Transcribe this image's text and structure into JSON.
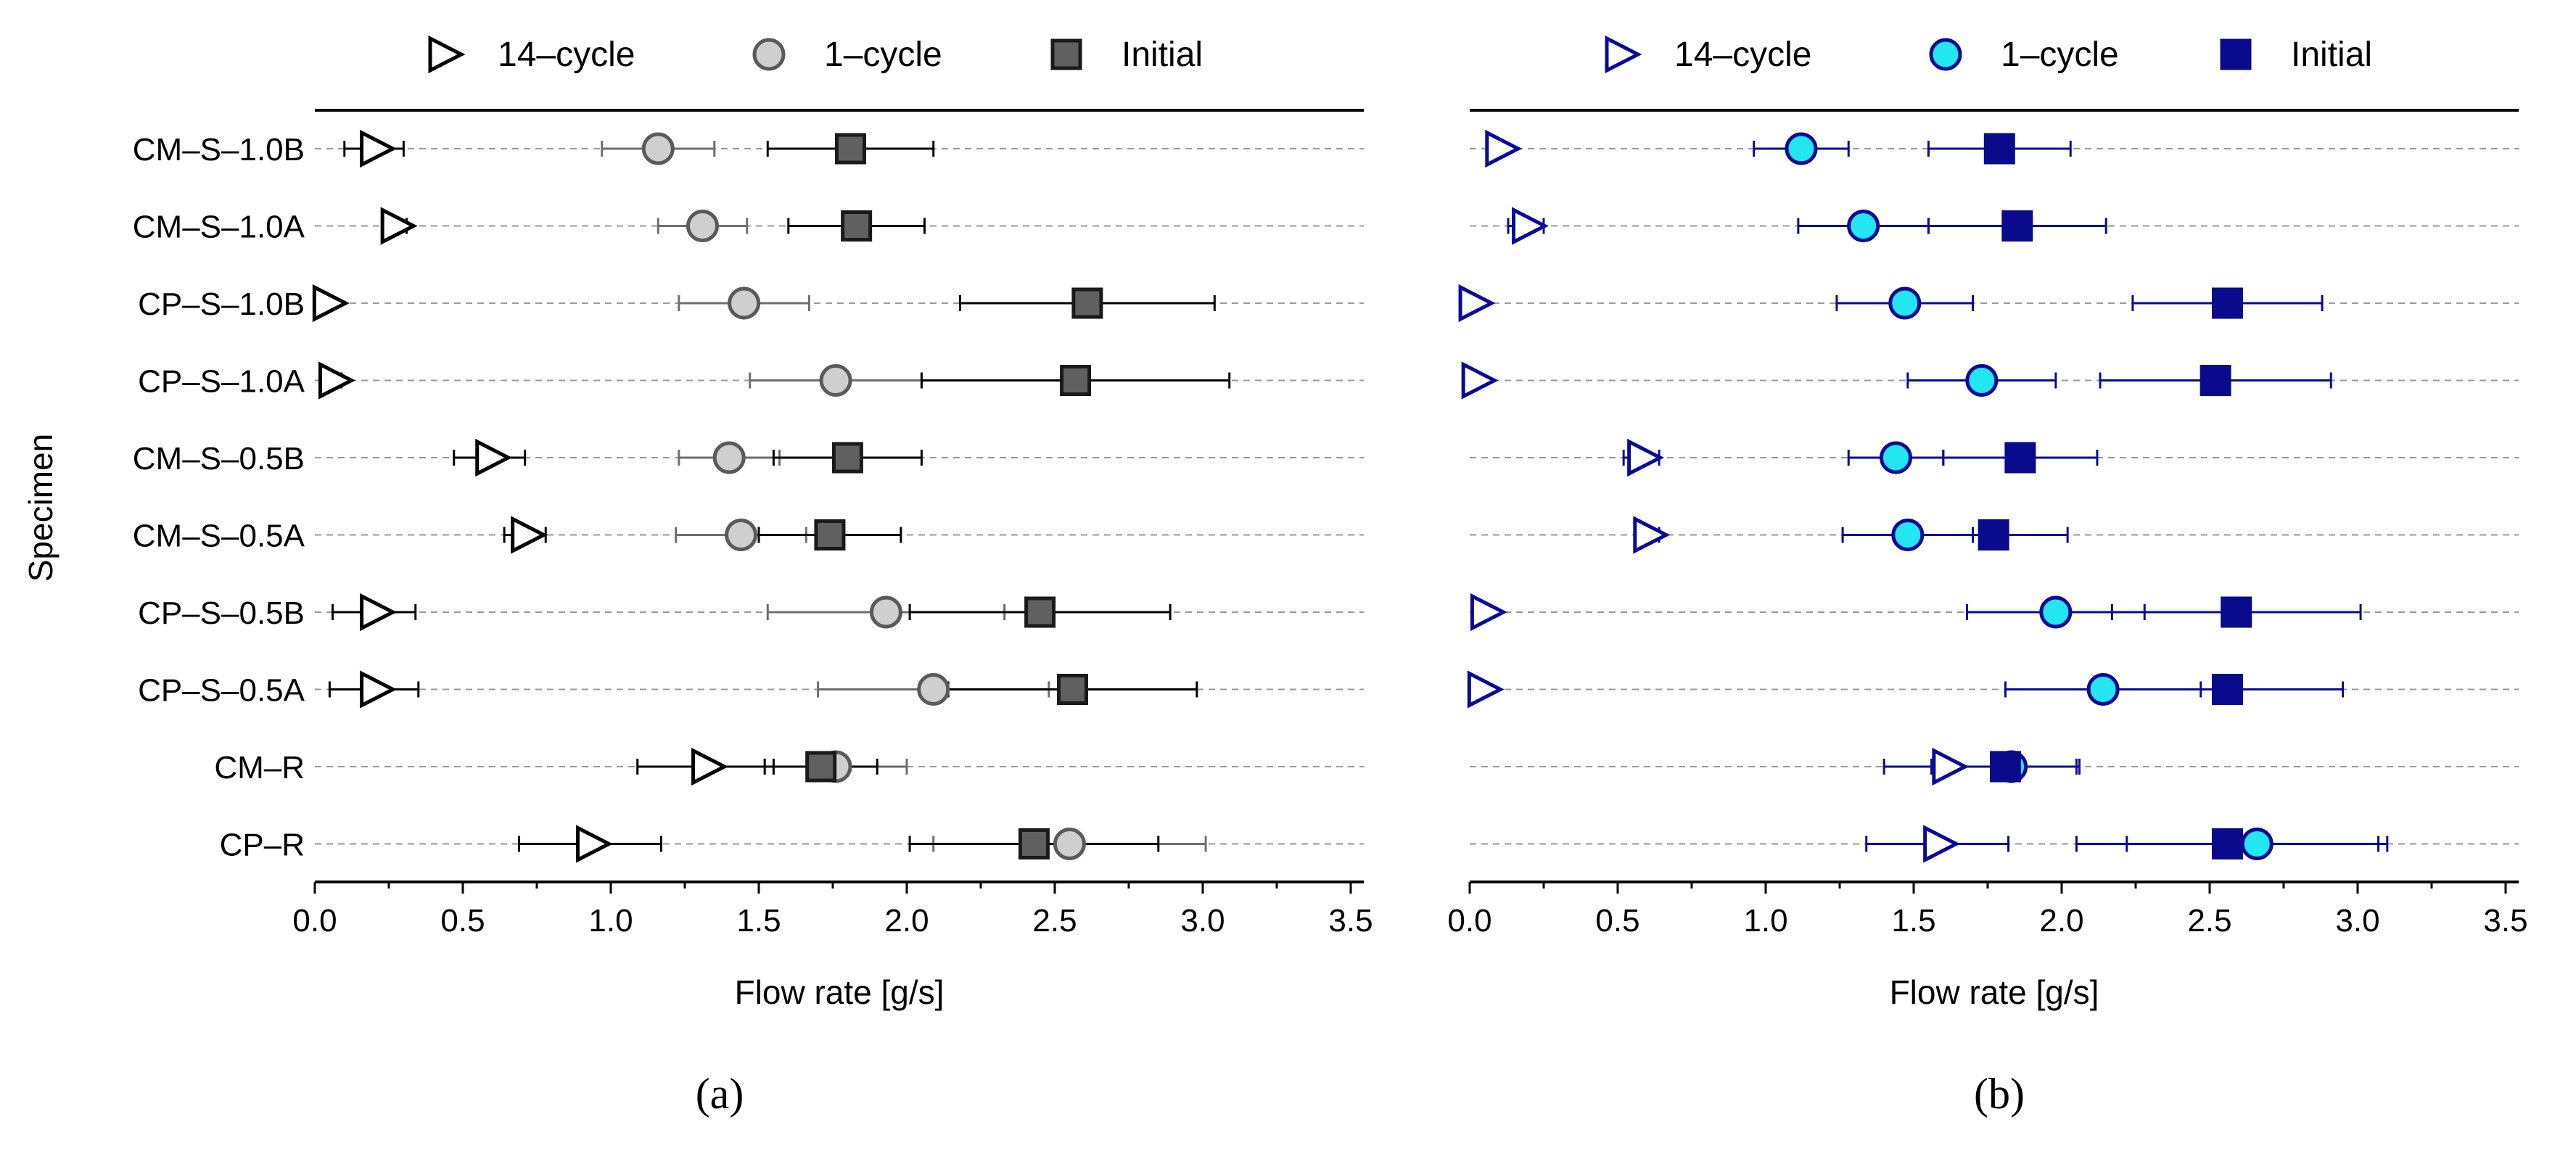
{
  "chart_data": [
    {
      "panel": "(a)",
      "type": "scatter",
      "xlabel": "Flow rate [g/s]",
      "ylabel": "Specimen",
      "xlim": [
        -0.05,
        3.5
      ],
      "xticks": [
        "0.0",
        "0.5",
        "1.0",
        "1.5",
        "2.0",
        "2.5",
        "3.0",
        "3.5"
      ],
      "categories": [
        "CM–S–1.0B",
        "CM–S–1.0A",
        "CP–S–1.0B",
        "CP–S–1.0A",
        "CM–S–0.5B",
        "CM–S–0.5A",
        "CP–S–0.5B",
        "CP–S–0.5A",
        "CM–R",
        "CP–R"
      ],
      "grid": "horizontal dashed",
      "legend_position": "top",
      "series": [
        {
          "name": "14–cycle",
          "marker": "triangle-right",
          "fill": "#ffffff",
          "stroke": "#000000",
          "err_color": "#000000",
          "values": [
            0.2,
            0.27,
            0.04,
            0.06,
            0.59,
            0.71,
            0.2,
            0.2,
            1.32,
            0.93
          ],
          "err": [
            0.1,
            0.04,
            0.0,
            0.03,
            0.12,
            0.07,
            0.14,
            0.15,
            0.23,
            0.24
          ]
        },
        {
          "name": "1–cycle",
          "marker": "circle",
          "fill": "#cfcfcf",
          "stroke": "#5a5a5a",
          "err_color": "#6e6e6e",
          "values": [
            1.16,
            1.31,
            1.45,
            1.76,
            1.4,
            1.44,
            1.93,
            2.09,
            1.76,
            2.55
          ],
          "err": [
            0.19,
            0.15,
            0.22,
            0.29,
            0.17,
            0.22,
            0.4,
            0.39,
            0.24,
            0.46
          ]
        },
        {
          "name": "Initial",
          "marker": "square",
          "fill": "#606060",
          "stroke": "#1a1a1a",
          "err_color": "#000000",
          "values": [
            1.81,
            1.83,
            2.61,
            2.57,
            1.8,
            1.74,
            2.45,
            2.56,
            1.71,
            2.43
          ],
          "err": [
            0.28,
            0.23,
            0.43,
            0.52,
            0.25,
            0.24,
            0.44,
            0.42,
            0.19,
            0.42
          ]
        }
      ]
    },
    {
      "panel": "(b)",
      "type": "scatter",
      "xlabel": "Flow rate [g/s]",
      "ylabel": "",
      "xlim": [
        -0.05,
        3.5
      ],
      "xticks": [
        "0.0",
        "0.5",
        "1.0",
        "1.5",
        "2.0",
        "2.5",
        "3.0",
        "3.5"
      ],
      "categories": [
        "CM–S–1.0B",
        "CM–S–1.0A",
        "CP–S–1.0B",
        "CP–S–1.0A",
        "CM–S–0.5B",
        "CM–S–0.5A",
        "CP–S–0.5B",
        "CP–S–0.5A",
        "CM–R",
        "CP–R"
      ],
      "grid": "horizontal dashed",
      "legend_position": "top",
      "series": [
        {
          "name": "14–cycle",
          "marker": "triangle-right",
          "fill": "#ffffff",
          "stroke": "#0a0a96",
          "err_color": "#0a0a96",
          "values": [
            0.1,
            0.19,
            0.01,
            0.02,
            0.58,
            0.6,
            0.05,
            0.04,
            1.61,
            1.58
          ],
          "err": [
            0.0,
            0.06,
            0.0,
            0.0,
            0.06,
            0.04,
            0.0,
            0.0,
            0.21,
            0.24
          ]
        },
        {
          "name": "1–cycle",
          "marker": "circle",
          "fill": "#22e6f0",
          "stroke": "#0a0a96",
          "err_color": "#0a0a96",
          "values": [
            1.12,
            1.33,
            1.47,
            1.73,
            1.44,
            1.48,
            1.98,
            2.14,
            1.83,
            2.66
          ],
          "err": [
            0.16,
            0.22,
            0.23,
            0.25,
            0.16,
            0.22,
            0.3,
            0.33,
            0.22,
            0.44
          ]
        },
        {
          "name": "Initial",
          "marker": "square",
          "fill": "#0a0a8c",
          "stroke": "#0a0a8c",
          "err_color": "#0a0a96",
          "values": [
            1.79,
            1.85,
            2.56,
            2.52,
            1.86,
            1.77,
            2.59,
            2.56,
            1.81,
            2.56
          ],
          "err": [
            0.24,
            0.3,
            0.32,
            0.39,
            0.26,
            0.25,
            0.42,
            0.39,
            0.25,
            0.51
          ]
        }
      ]
    }
  ]
}
